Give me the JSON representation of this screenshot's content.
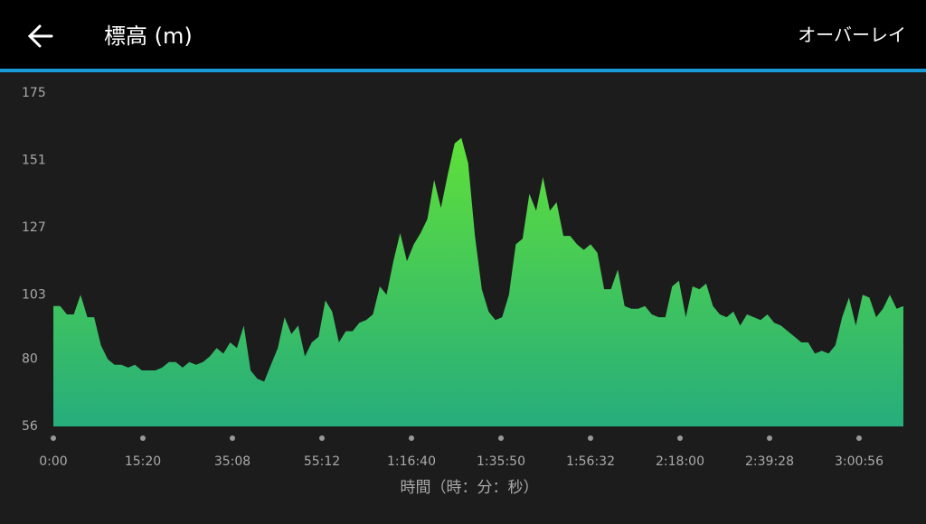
{
  "header": {
    "title": "標高 (m)",
    "action": "オーバーレイ"
  },
  "chart_data": {
    "type": "area",
    "x_label": "時間（時：分：秒）",
    "x_tick_labels": [
      "0:00",
      "15:20",
      "35:08",
      "55:12",
      "1:16:40",
      "1:35:50",
      "1:56:32",
      "2:18:00",
      "2:39:28",
      "3:00:56"
    ],
    "values": [
      99,
      99,
      96,
      96,
      103,
      95,
      95,
      85,
      80,
      78,
      78,
      77,
      78,
      76,
      76,
      76,
      77,
      79,
      79,
      77,
      79,
      78,
      79,
      81,
      84,
      82,
      86,
      84,
      92,
      76,
      73,
      72,
      78,
      84,
      95,
      89,
      92,
      81,
      86,
      88,
      101,
      97,
      86,
      90,
      90,
      93,
      94,
      96,
      106,
      103,
      115,
      125,
      115,
      121,
      125,
      130,
      144,
      134,
      146,
      157,
      159,
      150,
      124,
      105,
      97,
      94,
      95,
      103,
      121,
      123,
      139,
      133,
      145,
      133,
      136,
      124,
      124,
      121,
      119,
      121,
      118,
      105,
      105,
      112,
      99,
      98,
      98,
      99,
      96,
      95,
      95,
      106,
      108,
      95,
      106,
      105,
      107,
      99,
      96,
      95,
      97,
      92,
      96,
      95,
      94,
      96,
      93,
      92,
      90,
      88,
      86,
      86,
      82,
      83,
      82,
      85,
      95,
      102,
      92,
      103,
      102,
      95,
      98,
      103,
      98,
      99
    ],
    "ylim": [
      56,
      175
    ],
    "yticks": [
      56,
      80,
      103,
      127,
      151,
      175
    ],
    "color_top": "#5fe03a",
    "color_bottom": "#26ad7c"
  }
}
